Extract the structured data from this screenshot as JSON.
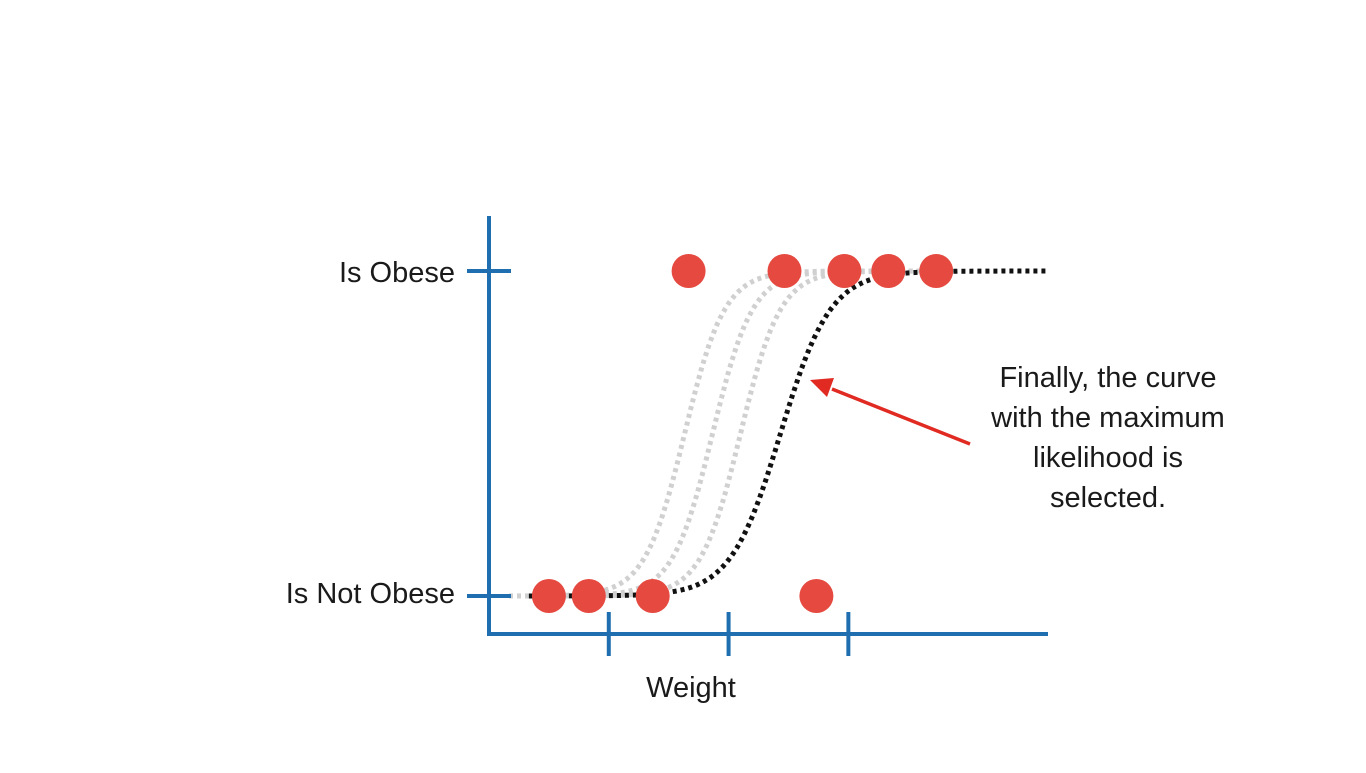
{
  "chart_data": {
    "type": "scatter",
    "title": "",
    "xlabel": "Weight",
    "ylabel": "",
    "y_tick_labels": [
      "Is Not Obese",
      "Is Obese"
    ],
    "y_values": [
      0,
      1
    ],
    "x_ticks": [
      3,
      6,
      9
    ],
    "xlim": [
      0,
      14
    ],
    "ylim": [
      -0.1,
      1.1
    ],
    "grid": false,
    "series": [
      {
        "points": [
          {
            "x": 1.5,
            "y": 0
          },
          {
            "x": 2.5,
            "y": 0
          },
          {
            "x": 4.1,
            "y": 0
          },
          {
            "x": 8.2,
            "y": 0
          },
          {
            "x": 5.0,
            "y": 1
          },
          {
            "x": 7.4,
            "y": 1
          },
          {
            "x": 8.9,
            "y": 1
          },
          {
            "x": 10.0,
            "y": 1
          },
          {
            "x": 11.2,
            "y": 1
          }
        ]
      }
    ],
    "curves": [
      {
        "kind": "candidate",
        "x0": 4.9,
        "k": 2.0
      },
      {
        "kind": "candidate",
        "x0": 5.6,
        "k": 2.0
      },
      {
        "kind": "candidate",
        "x0": 6.3,
        "k": 2.0
      },
      {
        "kind": "selected",
        "x0": 7.3,
        "k": 1.6
      }
    ],
    "annotation": {
      "lines": [
        "Finally, the curve",
        "with the maximum",
        "likelihood is",
        "selected."
      ],
      "points_to": "selected curve"
    },
    "colors": {
      "axis": "#1f6fb0",
      "points": "#e5493f",
      "selected_curve": "#111111",
      "candidate_curves": "#d0d0d0",
      "arrow": "#e02a22"
    }
  }
}
